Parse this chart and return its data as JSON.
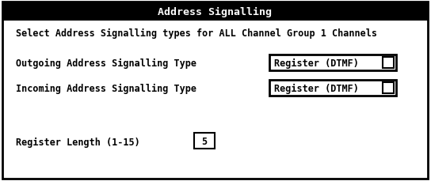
{
  "title": "Address Signalling",
  "subtitle": "Select Address Signalling types for ALL Channel Group 1 Channels",
  "label_outgoing": "Outgoing Address Signalling Type",
  "label_incoming": "Incoming Address Signalling Type",
  "label_register_length": "Register Length (1-15)",
  "dropdown_text": "Register (DTMF)",
  "register_value": "5",
  "bg_color": "#ffffff",
  "title_bg_color": "#000000",
  "title_text_color": "#ffffff",
  "body_text_color": "#000000",
  "border_color": "#000000",
  "title_fontsize": 9.5,
  "body_fontsize": 8.5,
  "fig_width": 5.44,
  "fig_height": 2.3,
  "dpi": 100
}
